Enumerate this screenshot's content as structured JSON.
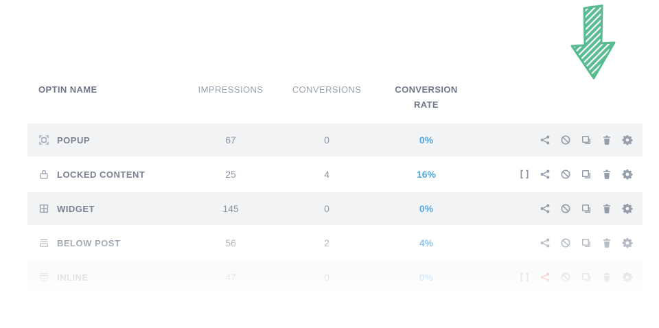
{
  "table": {
    "headers": [
      {
        "label": "OPTIN NAME",
        "align": "left",
        "emphasis": true
      },
      {
        "label": "IMPRESSIONS",
        "align": "center",
        "emphasis": false
      },
      {
        "label": "CONVERSIONS",
        "align": "center",
        "emphasis": false
      },
      {
        "label": "CONVERSION RATE",
        "align": "center",
        "emphasis": true
      }
    ],
    "rows": [
      {
        "name": "POPUP",
        "type_icon": "popup-icon",
        "impressions": "67",
        "conversions": "0",
        "conversion_rate": "0%",
        "shaded": true,
        "has_embed_action": false,
        "share_highlighted": false
      },
      {
        "name": "LOCKED CONTENT",
        "type_icon": "lock-icon",
        "impressions": "25",
        "conversions": "4",
        "conversion_rate": "16%",
        "shaded": false,
        "has_embed_action": true,
        "share_highlighted": false
      },
      {
        "name": "WIDGET",
        "type_icon": "widget-icon",
        "impressions": "145",
        "conversions": "0",
        "conversion_rate": "0%",
        "shaded": true,
        "has_embed_action": false,
        "share_highlighted": false
      },
      {
        "name": "BELOW POST",
        "type_icon": "below-post-icon",
        "impressions": "56",
        "conversions": "2",
        "conversion_rate": "4%",
        "shaded": false,
        "has_embed_action": false,
        "share_highlighted": false
      },
      {
        "name": "INLINE",
        "type_icon": "inline-icon",
        "impressions": "47",
        "conversions": "0",
        "conversion_rate": "0%",
        "shaded": true,
        "has_embed_action": true,
        "share_highlighted": true
      }
    ],
    "action_icons": [
      "share-icon",
      "ban-icon",
      "duplicate-icon",
      "trash-icon",
      "gear-icon"
    ],
    "embed_action_icon": "embed-brackets-icon"
  },
  "annotation": {
    "shape": "hand-drawn-down-arrow",
    "points_at": "gear-icon column"
  },
  "colors": {
    "accent_blue": "#56a8e0",
    "arrow_green": "#57bb90",
    "row_stripe": "#f2f3f5",
    "icon_gray": "#959daa",
    "header_emphasis": "#6f7888",
    "header_muted": "#9aa2b0",
    "name_text": "#78818f",
    "number_text": "#8d95a4",
    "share_highlight_red": "#e2574c"
  }
}
